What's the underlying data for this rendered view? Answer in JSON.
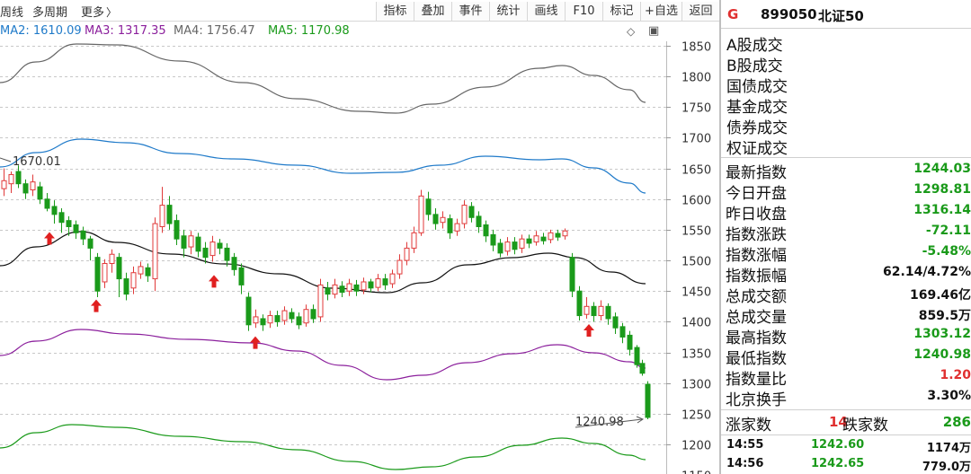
{
  "toolbar": {
    "left_items": [
      "周线",
      "多周期",
      "更多"
    ],
    "buttons": [
      "指标",
      "叠加",
      "事件",
      "统计",
      "画线",
      "F10",
      "标记",
      "+自选",
      "返回"
    ]
  },
  "ma": {
    "ma2": "MA2: 1610.09",
    "ma3": "MA3: 1317.35",
    "ma4": "MA4: 1756.47",
    "ma5": "MA5: 1170.98",
    "colors": {
      "ma2": "#1f7ac9",
      "ma3": "#8b1f9c",
      "ma4": "#666666",
      "ma5": "#1a9a1a"
    }
  },
  "chart_data": {
    "type": "candlestick",
    "y_ticks": [
      1850,
      1800,
      1750,
      1700,
      1650,
      1600,
      1550,
      1500,
      1450,
      1400,
      1350,
      1300,
      1250,
      1200,
      1150
    ],
    "ylim": [
      1140,
      1880
    ],
    "high_annotation": "1670.01",
    "low_annotation": "1240.98",
    "up_color": "#e03a3a",
    "down_color": "#1a9a1a"
  },
  "panel": {
    "marker": "G",
    "code": "899050",
    "name": "北证50",
    "trade_types": [
      "A股成交",
      "B股成交",
      "国债成交",
      "基金成交",
      "债券成交",
      "权证成交"
    ],
    "stats": [
      {
        "label": "最新指数",
        "value": "1244.03",
        "color": "#1a9a1a"
      },
      {
        "label": "今日开盘",
        "value": "1298.81",
        "color": "#1a9a1a"
      },
      {
        "label": "昨日收盘",
        "value": "1316.14",
        "color": "#1a9a1a"
      },
      {
        "label": "指数涨跌",
        "value": "-72.11",
        "color": "#1a9a1a"
      },
      {
        "label": "指数涨幅",
        "value": "-5.48%",
        "color": "#1a9a1a"
      },
      {
        "label": "指数振幅",
        "value": "62.14/4.72%",
        "color": "#111111"
      },
      {
        "label": "总成交额",
        "value": "169.46亿",
        "color": "#111111"
      },
      {
        "label": "总成交量",
        "value": "859.5万",
        "color": "#111111"
      },
      {
        "label": "最高指数",
        "value": "1303.12",
        "color": "#1a9a1a"
      },
      {
        "label": "最低指数",
        "value": "1240.98",
        "color": "#1a9a1a"
      },
      {
        "label": "指数量比",
        "value": "1.20",
        "color": "#e03030"
      },
      {
        "label": "北京换手",
        "value": "3.30%",
        "color": "#111111"
      }
    ],
    "breadth": {
      "up_label": "涨家数",
      "up_value": "14",
      "down_label": "跌家数",
      "down_value": "286"
    },
    "ticks": [
      {
        "time": "14:55",
        "price": "1242.60",
        "vol": "1174万"
      },
      {
        "time": "14:56",
        "price": "1242.65",
        "vol": "779.0万"
      }
    ]
  }
}
